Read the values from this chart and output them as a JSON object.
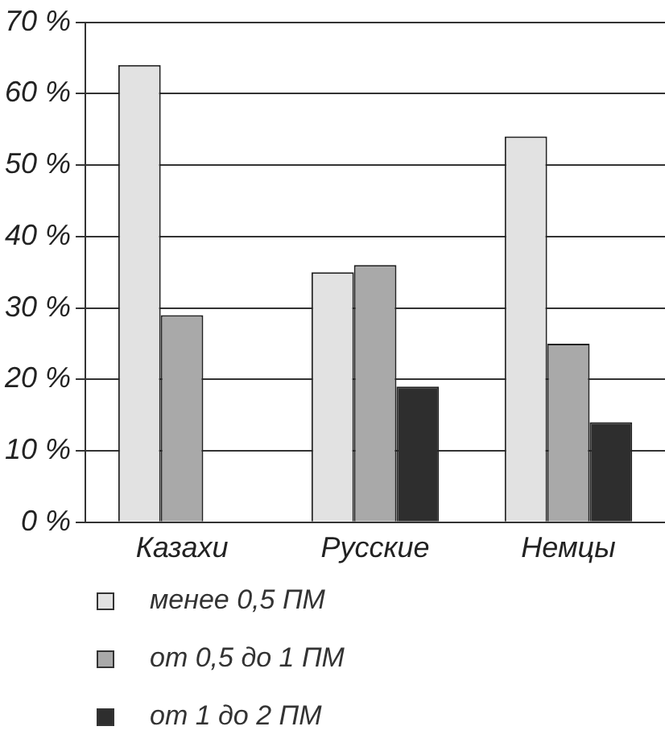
{
  "chart_data": {
    "type": "bar",
    "categories": [
      "Казахи",
      "Русские",
      "Немцы"
    ],
    "series": [
      {
        "name": "менее 0,5 ПМ",
        "color": "#e2e2e2",
        "values": [
          64,
          35,
          54
        ]
      },
      {
        "name": "от 0,5 до 1 ПМ",
        "color": "#a9a9a9",
        "values": [
          29,
          36,
          25
        ]
      },
      {
        "name": "от 1 до 2 ПМ",
        "color": "#2e2e2e",
        "values": [
          null,
          19,
          14
        ]
      }
    ],
    "ylim": [
      0,
      70
    ],
    "yticks": [
      {
        "value": 0,
        "label": "0 %"
      },
      {
        "value": 10,
        "label": "10 %"
      },
      {
        "value": 20,
        "label": "20 %"
      },
      {
        "value": 30,
        "label": "30 %"
      },
      {
        "value": 40,
        "label": "40 %"
      },
      {
        "value": 50,
        "label": "50 %"
      },
      {
        "value": 60,
        "label": "60 %"
      },
      {
        "value": 70,
        "label": "70 %"
      }
    ],
    "grid": "y",
    "legend": "bottom"
  }
}
